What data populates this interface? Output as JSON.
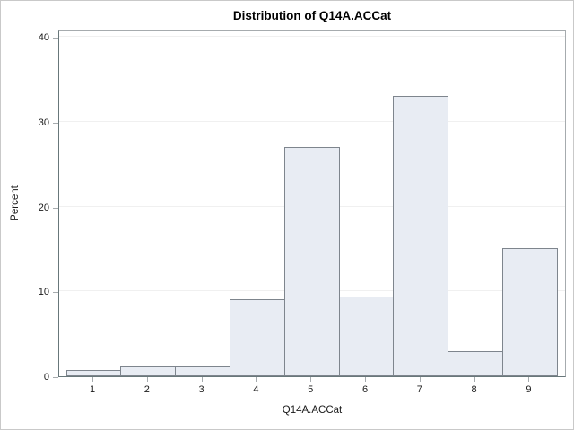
{
  "chart_data": {
    "type": "bar",
    "subtype": "histogram",
    "title": "Distribution of Q14A.ACCat",
    "xlabel": "Q14A.ACCat",
    "ylabel": "Percent",
    "categories": [
      "1",
      "2",
      "3",
      "4",
      "5",
      "6",
      "7",
      "8",
      "9"
    ],
    "values": [
      0.7,
      1.2,
      1.2,
      9.1,
      27.0,
      9.4,
      33.0,
      3.0,
      15.1
    ],
    "ylim": [
      0,
      40
    ],
    "yticks": [
      0,
      10,
      20,
      30,
      40
    ],
    "bin_width": 1,
    "legend": "none",
    "grid": "faint horizontal gridlines at each y tick",
    "colors": {
      "bar_fill": "#e8ecf3",
      "bar_border": "#7e858d",
      "axis_line": "#68777a",
      "frame_line": "#a6abae",
      "gridline": "#f0f0f0",
      "text": "#1a1a1a",
      "background": "#ffffff",
      "outer_border": "#c9c9c9"
    }
  }
}
